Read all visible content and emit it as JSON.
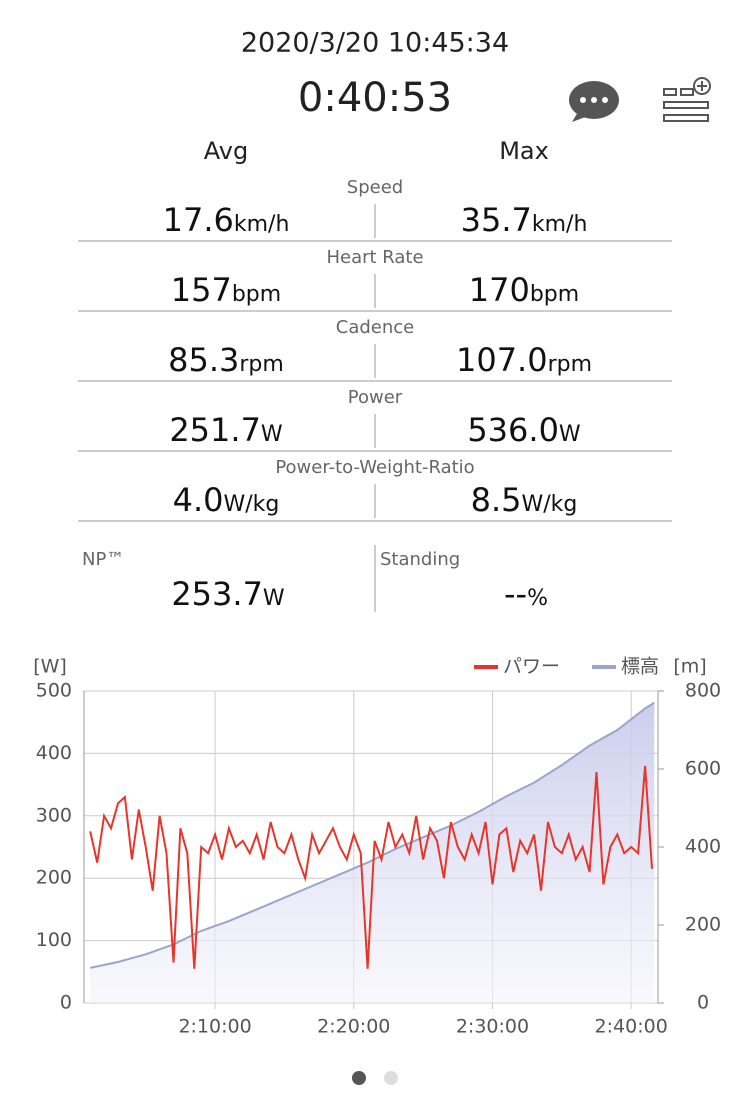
{
  "header": {
    "datetime": "2020/3/20 10:45:34",
    "duration": "0:40:53"
  },
  "stats": {
    "avg_label": "Avg",
    "max_label": "Max",
    "rows": [
      {
        "label": "Speed",
        "avg": "17.6",
        "avg_unit": "km/h",
        "max": "35.7",
        "max_unit": "km/h"
      },
      {
        "label": "Heart Rate",
        "avg": "157",
        "avg_unit": "bpm",
        "max": "170",
        "max_unit": "bpm"
      },
      {
        "label": "Cadence",
        "avg": "85.3",
        "avg_unit": "rpm",
        "max": "107.0",
        "max_unit": "rpm"
      },
      {
        "label": "Power",
        "avg": "251.7",
        "avg_unit": "W",
        "max": "536.0",
        "max_unit": "W"
      },
      {
        "label": "Power-to-Weight-Ratio",
        "avg": "4.0",
        "avg_unit": "W/kg",
        "max": "8.5",
        "max_unit": "W/kg"
      }
    ],
    "extra": [
      {
        "label": "NP™",
        "value": "253.7",
        "unit": "W"
      },
      {
        "label": "Standing",
        "value": "--",
        "unit": "%"
      }
    ]
  },
  "chart_data": {
    "type": "line",
    "y_label": "[W]",
    "y2_label": "[m]",
    "xlim": [
      7233,
      9716
    ],
    "xticks": [
      {
        "value": 7800,
        "label": "2:10:00"
      },
      {
        "value": 8400,
        "label": "2:20:00"
      },
      {
        "value": 9000,
        "label": "2:30:00"
      },
      {
        "value": 9600,
        "label": "2:40:00"
      }
    ],
    "ylim": [
      0,
      500
    ],
    "yticks": [
      0,
      100,
      200,
      300,
      400,
      500
    ],
    "y2lim": [
      0,
      800
    ],
    "y2ticks": [
      0,
      200,
      400,
      600,
      800
    ],
    "grid": true,
    "series": [
      {
        "name": "パワー",
        "color": "#e8352a",
        "x": [
          7260,
          7290,
          7320,
          7350,
          7380,
          7410,
          7440,
          7470,
          7500,
          7530,
          7560,
          7590,
          7620,
          7650,
          7680,
          7710,
          7740,
          7770,
          7800,
          7830,
          7860,
          7890,
          7920,
          7950,
          7980,
          8010,
          8040,
          8070,
          8100,
          8130,
          8160,
          8190,
          8220,
          8250,
          8280,
          8310,
          8340,
          8370,
          8400,
          8430,
          8460,
          8490,
          8520,
          8550,
          8580,
          8610,
          8640,
          8670,
          8700,
          8730,
          8760,
          8790,
          8820,
          8850,
          8880,
          8910,
          8940,
          8970,
          9000,
          9030,
          9060,
          9090,
          9120,
          9150,
          9180,
          9210,
          9240,
          9270,
          9300,
          9330,
          9360,
          9390,
          9420,
          9450,
          9480,
          9510,
          9540,
          9570,
          9600,
          9630,
          9660,
          9690
        ],
        "values": [
          275,
          225,
          300,
          280,
          320,
          330,
          230,
          310,
          250,
          180,
          300,
          240,
          65,
          280,
          240,
          55,
          250,
          240,
          270,
          230,
          280,
          250,
          260,
          240,
          270,
          230,
          290,
          250,
          240,
          270,
          230,
          200,
          270,
          240,
          260,
          280,
          250,
          230,
          270,
          240,
          55,
          260,
          230,
          290,
          250,
          270,
          240,
          300,
          230,
          280,
          260,
          200,
          290,
          250,
          230,
          270,
          240,
          290,
          190,
          270,
          280,
          210,
          260,
          240,
          270,
          180,
          290,
          250,
          240,
          270,
          230,
          250,
          210,
          370,
          190,
          250,
          270,
          240,
          250,
          240,
          380,
          215
        ]
      },
      {
        "name": "標高",
        "color": "#9aa5cc",
        "axis": "y2",
        "x": [
          7260,
          7380,
          7500,
          7620,
          7740,
          7860,
          7980,
          8100,
          8220,
          8340,
          8460,
          8580,
          8700,
          8820,
          8940,
          9060,
          9180,
          9300,
          9420,
          9540,
          9660,
          9700
        ],
        "values": [
          90,
          105,
          125,
          150,
          185,
          210,
          240,
          270,
          300,
          330,
          360,
          395,
          425,
          455,
          490,
          530,
          565,
          610,
          660,
          700,
          755,
          770
        ]
      }
    ]
  }
}
